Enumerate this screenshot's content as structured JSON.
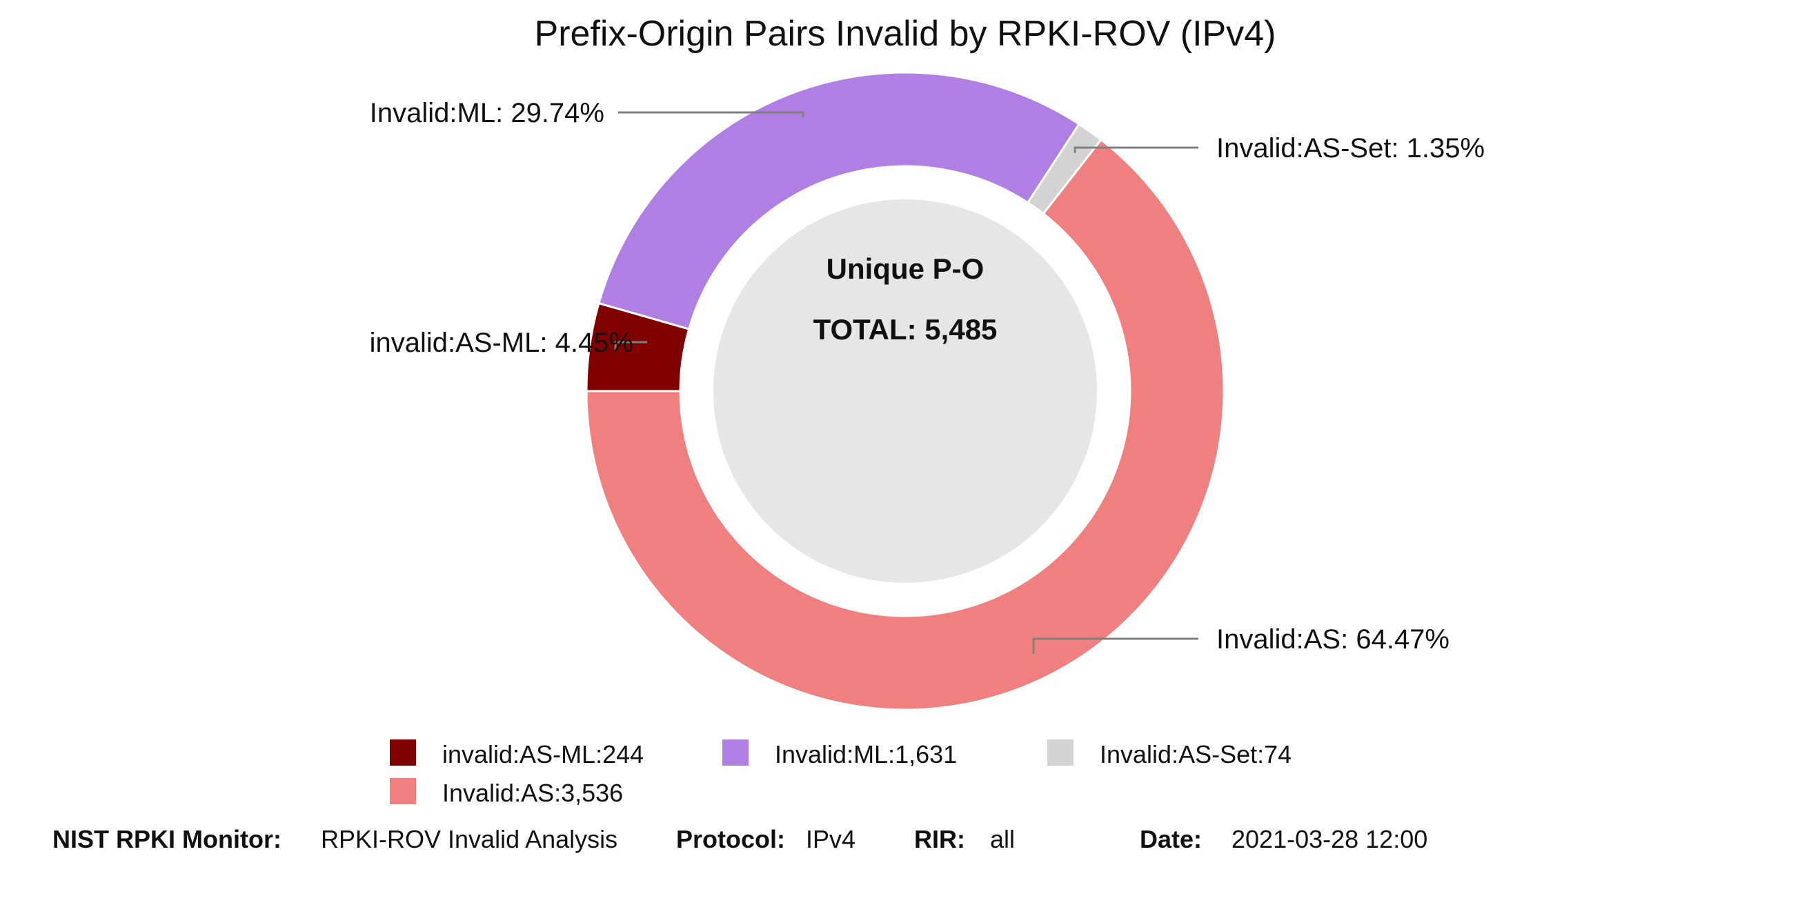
{
  "chart_data": {
    "type": "pie",
    "title": "Prefix-Origin Pairs Invalid by RPKI-ROV (IPv4)",
    "center": {
      "line1": "Unique P-O",
      "line2": "TOTAL: 5,485"
    },
    "slices": [
      {
        "name": "invalid:AS-ML",
        "value": 244,
        "percent": 4.45,
        "color": "#800000",
        "label": "invalid:AS-ML: 4.45%",
        "legend": "invalid:AS-ML:244"
      },
      {
        "name": "Invalid:ML",
        "value": 1631,
        "percent": 29.74,
        "color": "#b07fe3",
        "label": "Invalid:ML: 29.74%",
        "legend": "Invalid:ML:1,631"
      },
      {
        "name": "Invalid:AS-Set",
        "value": 74,
        "percent": 1.35,
        "color": "#d3d3d3",
        "label": "Invalid:AS-Set: 1.35%",
        "legend": "Invalid:AS-Set:74"
      },
      {
        "name": "Invalid:AS",
        "value": 3536,
        "percent": 64.47,
        "color": "#f08080",
        "label": "Invalid:AS: 64.47%",
        "legend": "Invalid:AS:3,536"
      }
    ],
    "legend_placement": "bottom"
  },
  "footer": {
    "monitor_label": "NIST RPKI Monitor:",
    "monitor_value": "RPKI-ROV Invalid Analysis",
    "protocol_label": "Protocol:",
    "protocol_value": "IPv4",
    "rir_label": "RIR:",
    "rir_value": "all",
    "date_label": "Date:",
    "date_value": "2021-03-28 12:00"
  }
}
